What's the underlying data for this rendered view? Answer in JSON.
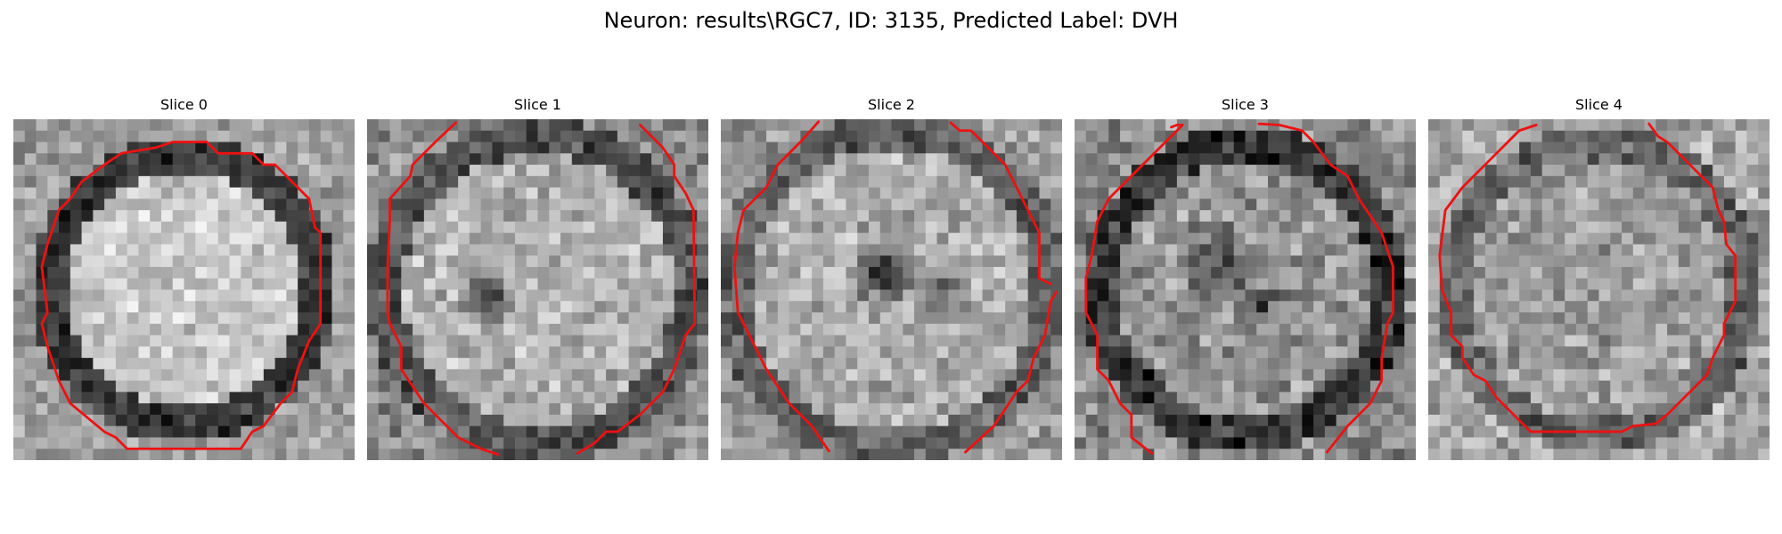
{
  "figure": {
    "suptitle": "Neuron: results\\RGC7, ID: 3135, Predicted Label: DVH"
  },
  "slices": [
    {
      "title": "Slice 0"
    },
    {
      "title": "Slice 1"
    },
    {
      "title": "Slice 2"
    },
    {
      "title": "Slice 3"
    },
    {
      "title": "Slice 4"
    }
  ],
  "colors": {
    "contour": "#ee1111",
    "background": "#ffffff"
  }
}
